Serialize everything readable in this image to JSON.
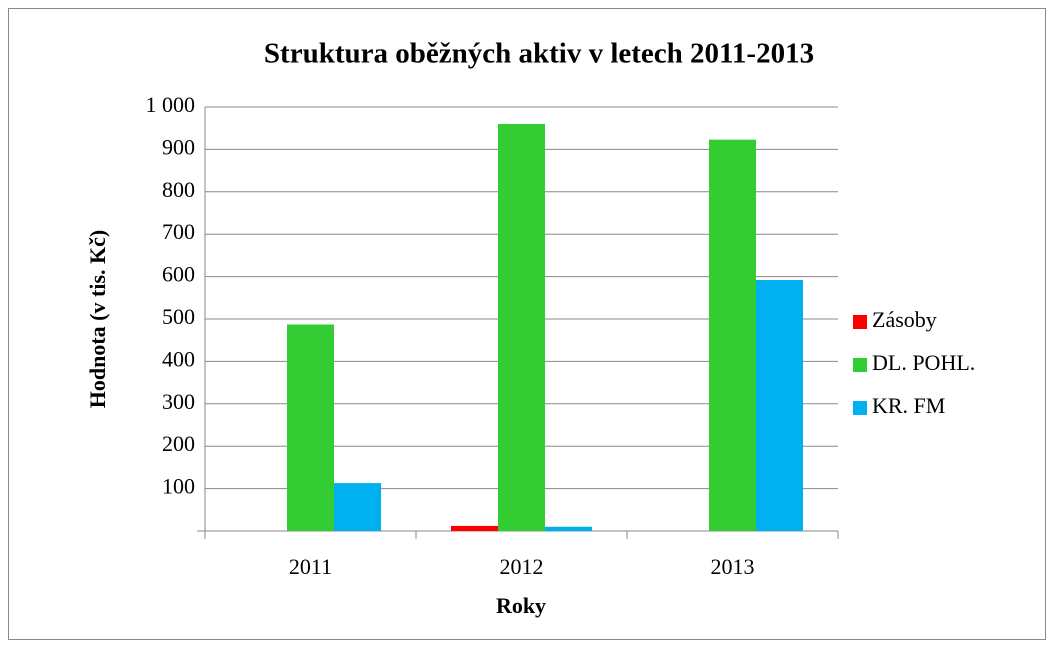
{
  "chart_data": {
    "type": "bar",
    "title": "Struktura oběžných aktiv v letech 2011-2013",
    "x_label": "Roky",
    "y_label": "Hodnota (v tis. Kč)",
    "categories": [
      "2011",
      "2012",
      "2013"
    ],
    "series": [
      {
        "name": "Zásoby",
        "color": "#ff0000",
        "values": [
          0,
          12,
          0
        ]
      },
      {
        "name": "DL. POHL.",
        "color": "#33cc33",
        "values": [
          487,
          960,
          923
        ]
      },
      {
        "name": "KR. FM",
        "color": "#00b0f0",
        "values": [
          113,
          10,
          592
        ]
      }
    ],
    "ylim": [
      0,
      1000
    ],
    "yticks": [
      100,
      200,
      300,
      400,
      500,
      600,
      700,
      800,
      900,
      {
        "value": 1000,
        "label": "1 000"
      }
    ],
    "grid": true,
    "legend": "right"
  }
}
